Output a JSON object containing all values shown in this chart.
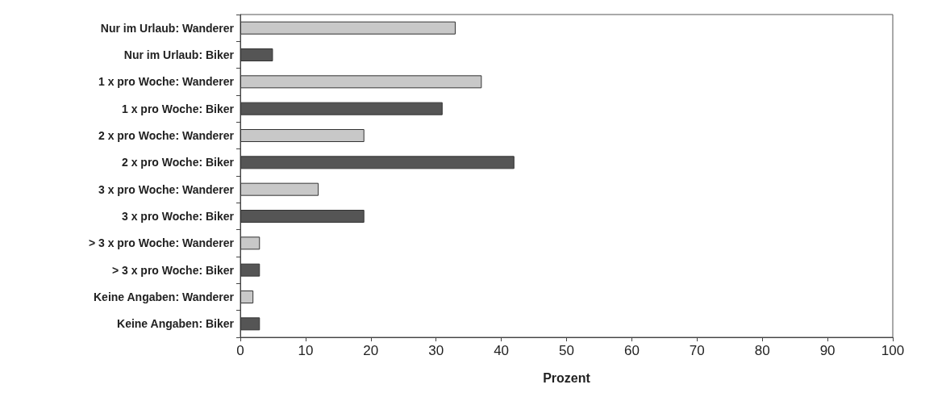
{
  "chart_data": {
    "type": "bar",
    "orientation": "horizontal",
    "xlabel": "Prozent",
    "categories": [
      "Nur im Urlaub: Wanderer",
      "Nur im Urlaub: Biker",
      "1 x pro Woche: Wanderer",
      "1 x pro Woche: Biker",
      "2 x pro Woche: Wanderer",
      "2 x pro Woche: Biker",
      "3 x pro Woche: Wanderer",
      "3 x pro Woche: Biker",
      "> 3 x pro Woche: Wanderer",
      "> 3 x pro Woche: Biker",
      "Keine Angaben: Wanderer",
      "Keine Angaben: Biker"
    ],
    "values": [
      33,
      5,
      37,
      31,
      19,
      42,
      12,
      19,
      3,
      3,
      2,
      3
    ],
    "colors": [
      "#c8c8c8",
      "#555555",
      "#c8c8c8",
      "#555555",
      "#c8c8c8",
      "#555555",
      "#c8c8c8",
      "#555555",
      "#c8c8c8",
      "#555555",
      "#c8c8c8",
      "#555555"
    ],
    "xlim": [
      0,
      100
    ],
    "xticks": [
      0,
      10,
      20,
      30,
      40,
      50,
      60,
      70,
      80,
      90,
      100
    ],
    "grid": false
  }
}
